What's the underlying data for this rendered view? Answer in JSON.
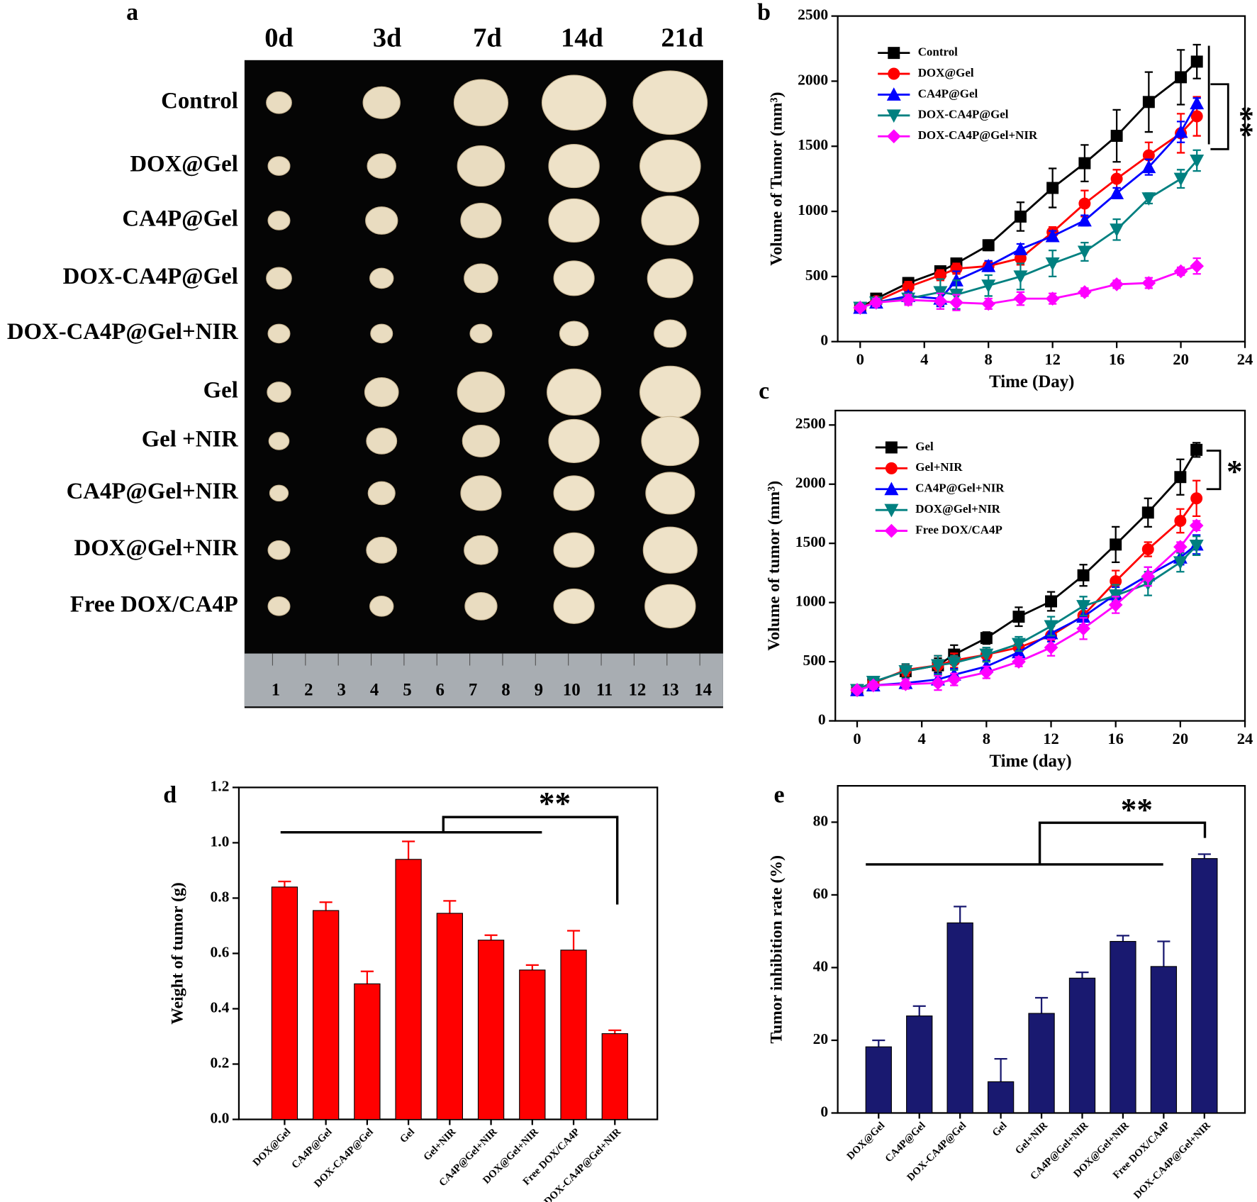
{
  "photo": {
    "panel_label": "a",
    "timepoints": [
      "0d",
      "3d",
      "7d",
      "14d",
      "21d"
    ],
    "groups": [
      "Control",
      "DOX@Gel",
      "CA4P@Gel",
      "DOX-CA4P@Gel",
      "DOX-CA4P@Gel+NIR",
      "Gel",
      "Gel +NIR",
      "CA4P@Gel+NIR",
      "DOX@Gel+NIR",
      "Free DOX/CA4P"
    ],
    "ruler_labels": [
      "1",
      "2",
      "3",
      "4",
      "5",
      "6",
      "7",
      "8",
      "9",
      "10",
      "11",
      "12",
      "13",
      "14"
    ]
  },
  "chart_data": [
    {
      "type": "line",
      "panel_label": "b",
      "x_label": "Time (Day)",
      "y_label": "Volume of Tumor (mm³)",
      "annotation": "**",
      "x": [
        0,
        1,
        3,
        5,
        6,
        8,
        10,
        12,
        14,
        16,
        18,
        20,
        21
      ],
      "xlim": [
        -1.4,
        24
      ],
      "xticks": [
        0,
        4,
        8,
        12,
        16,
        20,
        24
      ],
      "ylim": [
        0,
        2500
      ],
      "yticks": [
        0,
        500,
        1000,
        1500,
        2000,
        2500
      ],
      "series": [
        {
          "name": "Control",
          "color": "#000000",
          "marker": "square",
          "values": [
            260,
            330,
            450,
            540,
            600,
            740,
            960,
            1180,
            1370,
            1580,
            1840,
            2030,
            2150
          ],
          "errors": [
            20,
            30,
            40,
            30,
            30,
            40,
            110,
            150,
            140,
            200,
            230,
            210,
            130
          ]
        },
        {
          "name": "DOX@Gel",
          "color": "#ff0000",
          "marker": "circle",
          "values": [
            260,
            310,
            420,
            510,
            560,
            580,
            640,
            840,
            1060,
            1250,
            1430,
            1600,
            1730
          ],
          "errors": [
            20,
            30,
            40,
            40,
            40,
            30,
            50,
            40,
            100,
            70,
            100,
            150,
            150
          ]
        },
        {
          "name": "CA4P@Gel",
          "color": "#0000ff",
          "marker": "triangle-up",
          "values": [
            260,
            300,
            350,
            330,
            470,
            580,
            710,
            810,
            930,
            1140,
            1340,
            1610,
            1830
          ],
          "errors": [
            20,
            30,
            30,
            60,
            70,
            40,
            40,
            40,
            40,
            40,
            60,
            80,
            40
          ]
        },
        {
          "name": "DOX-CA4P@Gel",
          "color": "#008080",
          "marker": "triangle-down",
          "values": [
            260,
            300,
            330,
            380,
            360,
            430,
            500,
            600,
            690,
            860,
            1100,
            1250,
            1390
          ],
          "errors": [
            20,
            30,
            40,
            100,
            110,
            80,
            100,
            100,
            70,
            80,
            40,
            70,
            80
          ]
        },
        {
          "name": "DOX-CA4P@Gel+NIR",
          "color": "#ff00ff",
          "marker": "diamond",
          "values": [
            260,
            300,
            320,
            310,
            300,
            290,
            330,
            330,
            380,
            440,
            450,
            540,
            580
          ],
          "errors": [
            20,
            30,
            40,
            60,
            60,
            40,
            50,
            40,
            30,
            30,
            40,
            30,
            60
          ]
        }
      ]
    },
    {
      "type": "line",
      "panel_label": "c",
      "x_label": "Time (day)",
      "y_label": "Volume of tumor (mm³)",
      "annotation": "*",
      "x": [
        0,
        1,
        3,
        5,
        6,
        8,
        10,
        12,
        14,
        16,
        18,
        20,
        21
      ],
      "xlim": [
        -1.35,
        24
      ],
      "xticks": [
        0,
        4,
        8,
        12,
        16,
        20,
        24
      ],
      "ylim": [
        0,
        2622
      ],
      "yticks": [
        0,
        500,
        1000,
        1500,
        2000,
        2500
      ],
      "series": [
        {
          "name": "Gel",
          "color": "#000000",
          "marker": "square",
          "values": [
            260,
            330,
            420,
            470,
            560,
            700,
            880,
            1010,
            1230,
            1490,
            1760,
            2060,
            2290
          ],
          "errors": [
            20,
            30,
            50,
            60,
            80,
            50,
            80,
            80,
            90,
            150,
            120,
            150,
            60
          ]
        },
        {
          "name": "Gel+NIR",
          "color": "#ff0000",
          "marker": "circle",
          "values": [
            260,
            320,
            430,
            470,
            510,
            560,
            620,
            720,
            890,
            1180,
            1450,
            1690,
            1880
          ],
          "errors": [
            20,
            30,
            50,
            80,
            60,
            60,
            60,
            80,
            80,
            90,
            60,
            100,
            150
          ]
        },
        {
          "name": "CA4P@Gel+NIR",
          "color": "#0000ff",
          "marker": "triangle-up",
          "values": [
            260,
            300,
            320,
            350,
            390,
            460,
            580,
            740,
            880,
            1070,
            1230,
            1380,
            1490
          ],
          "errors": [
            20,
            30,
            40,
            50,
            50,
            50,
            60,
            70,
            70,
            60,
            70,
            60,
            80
          ]
        },
        {
          "name": "DOX@Gel+NIR",
          "color": "#008080",
          "marker": "triangle-down",
          "values": [
            260,
            330,
            420,
            470,
            490,
            560,
            650,
            800,
            970,
            1060,
            1160,
            1340,
            1480
          ],
          "errors": [
            20,
            40,
            60,
            80,
            60,
            60,
            60,
            80,
            80,
            90,
            100,
            80,
            80
          ]
        },
        {
          "name": "Free DOX/CA4P",
          "color": "#ff00ff",
          "marker": "diamond",
          "values": [
            260,
            300,
            310,
            320,
            350,
            410,
            500,
            620,
            780,
            980,
            1220,
            1470,
            1650
          ],
          "errors": [
            20,
            30,
            40,
            60,
            50,
            50,
            40,
            70,
            90,
            70,
            80,
            40,
            40
          ]
        }
      ]
    },
    {
      "type": "bar",
      "panel_label": "d",
      "y_label": "Weight of tumor (g)",
      "annotation": "**",
      "color": "#ff0000",
      "categories": [
        "DOX@Gel",
        "CA4P@Gel",
        "DOX-CA4P@Gel",
        "Gel",
        "Gel+NIR",
        "CA4P@Gel+NIR",
        "DOX@Gel+NIR",
        "Free DOX/CA4P",
        "DOX-CA4P@Gel+NIR"
      ],
      "values": [
        0.84,
        0.755,
        0.49,
        0.94,
        0.745,
        0.648,
        0.54,
        0.612,
        0.31
      ],
      "errors": [
        0.02,
        0.03,
        0.045,
        0.065,
        0.045,
        0.018,
        0.018,
        0.07,
        0.012
      ],
      "ylim": [
        0,
        1.2
      ],
      "yticks": [
        {
          "value": 0,
          "label": "0.0"
        },
        0.2,
        0.4,
        0.6,
        0.8,
        {
          "value": 1,
          "label": "1.0"
        },
        1.2
      ]
    },
    {
      "type": "bar",
      "panel_label": "e",
      "y_label": "Tumor inhibition rate (%)",
      "annotation": "**",
      "color": "#191970",
      "categories": [
        "DOX@Gel",
        "CA4P@Gel",
        "DOX-CA4P@Gel",
        "Gel",
        "Gel+NIR",
        "CA4P@Gel+NIR",
        "DOX@Gel+NIR",
        "Free DOX/CA4P",
        "DOX-CA4P@Gel+NIR"
      ],
      "values": [
        18.2,
        26.7,
        52.3,
        8.6,
        27.4,
        37.1,
        47.2,
        40.3,
        70
      ],
      "errors": [
        1.8,
        2.7,
        4.5,
        6.3,
        4.3,
        1.6,
        1.6,
        6.9,
        1.2
      ],
      "ylim": [
        0,
        90
      ],
      "yticks": [
        0,
        20,
        40,
        60,
        80
      ]
    }
  ]
}
